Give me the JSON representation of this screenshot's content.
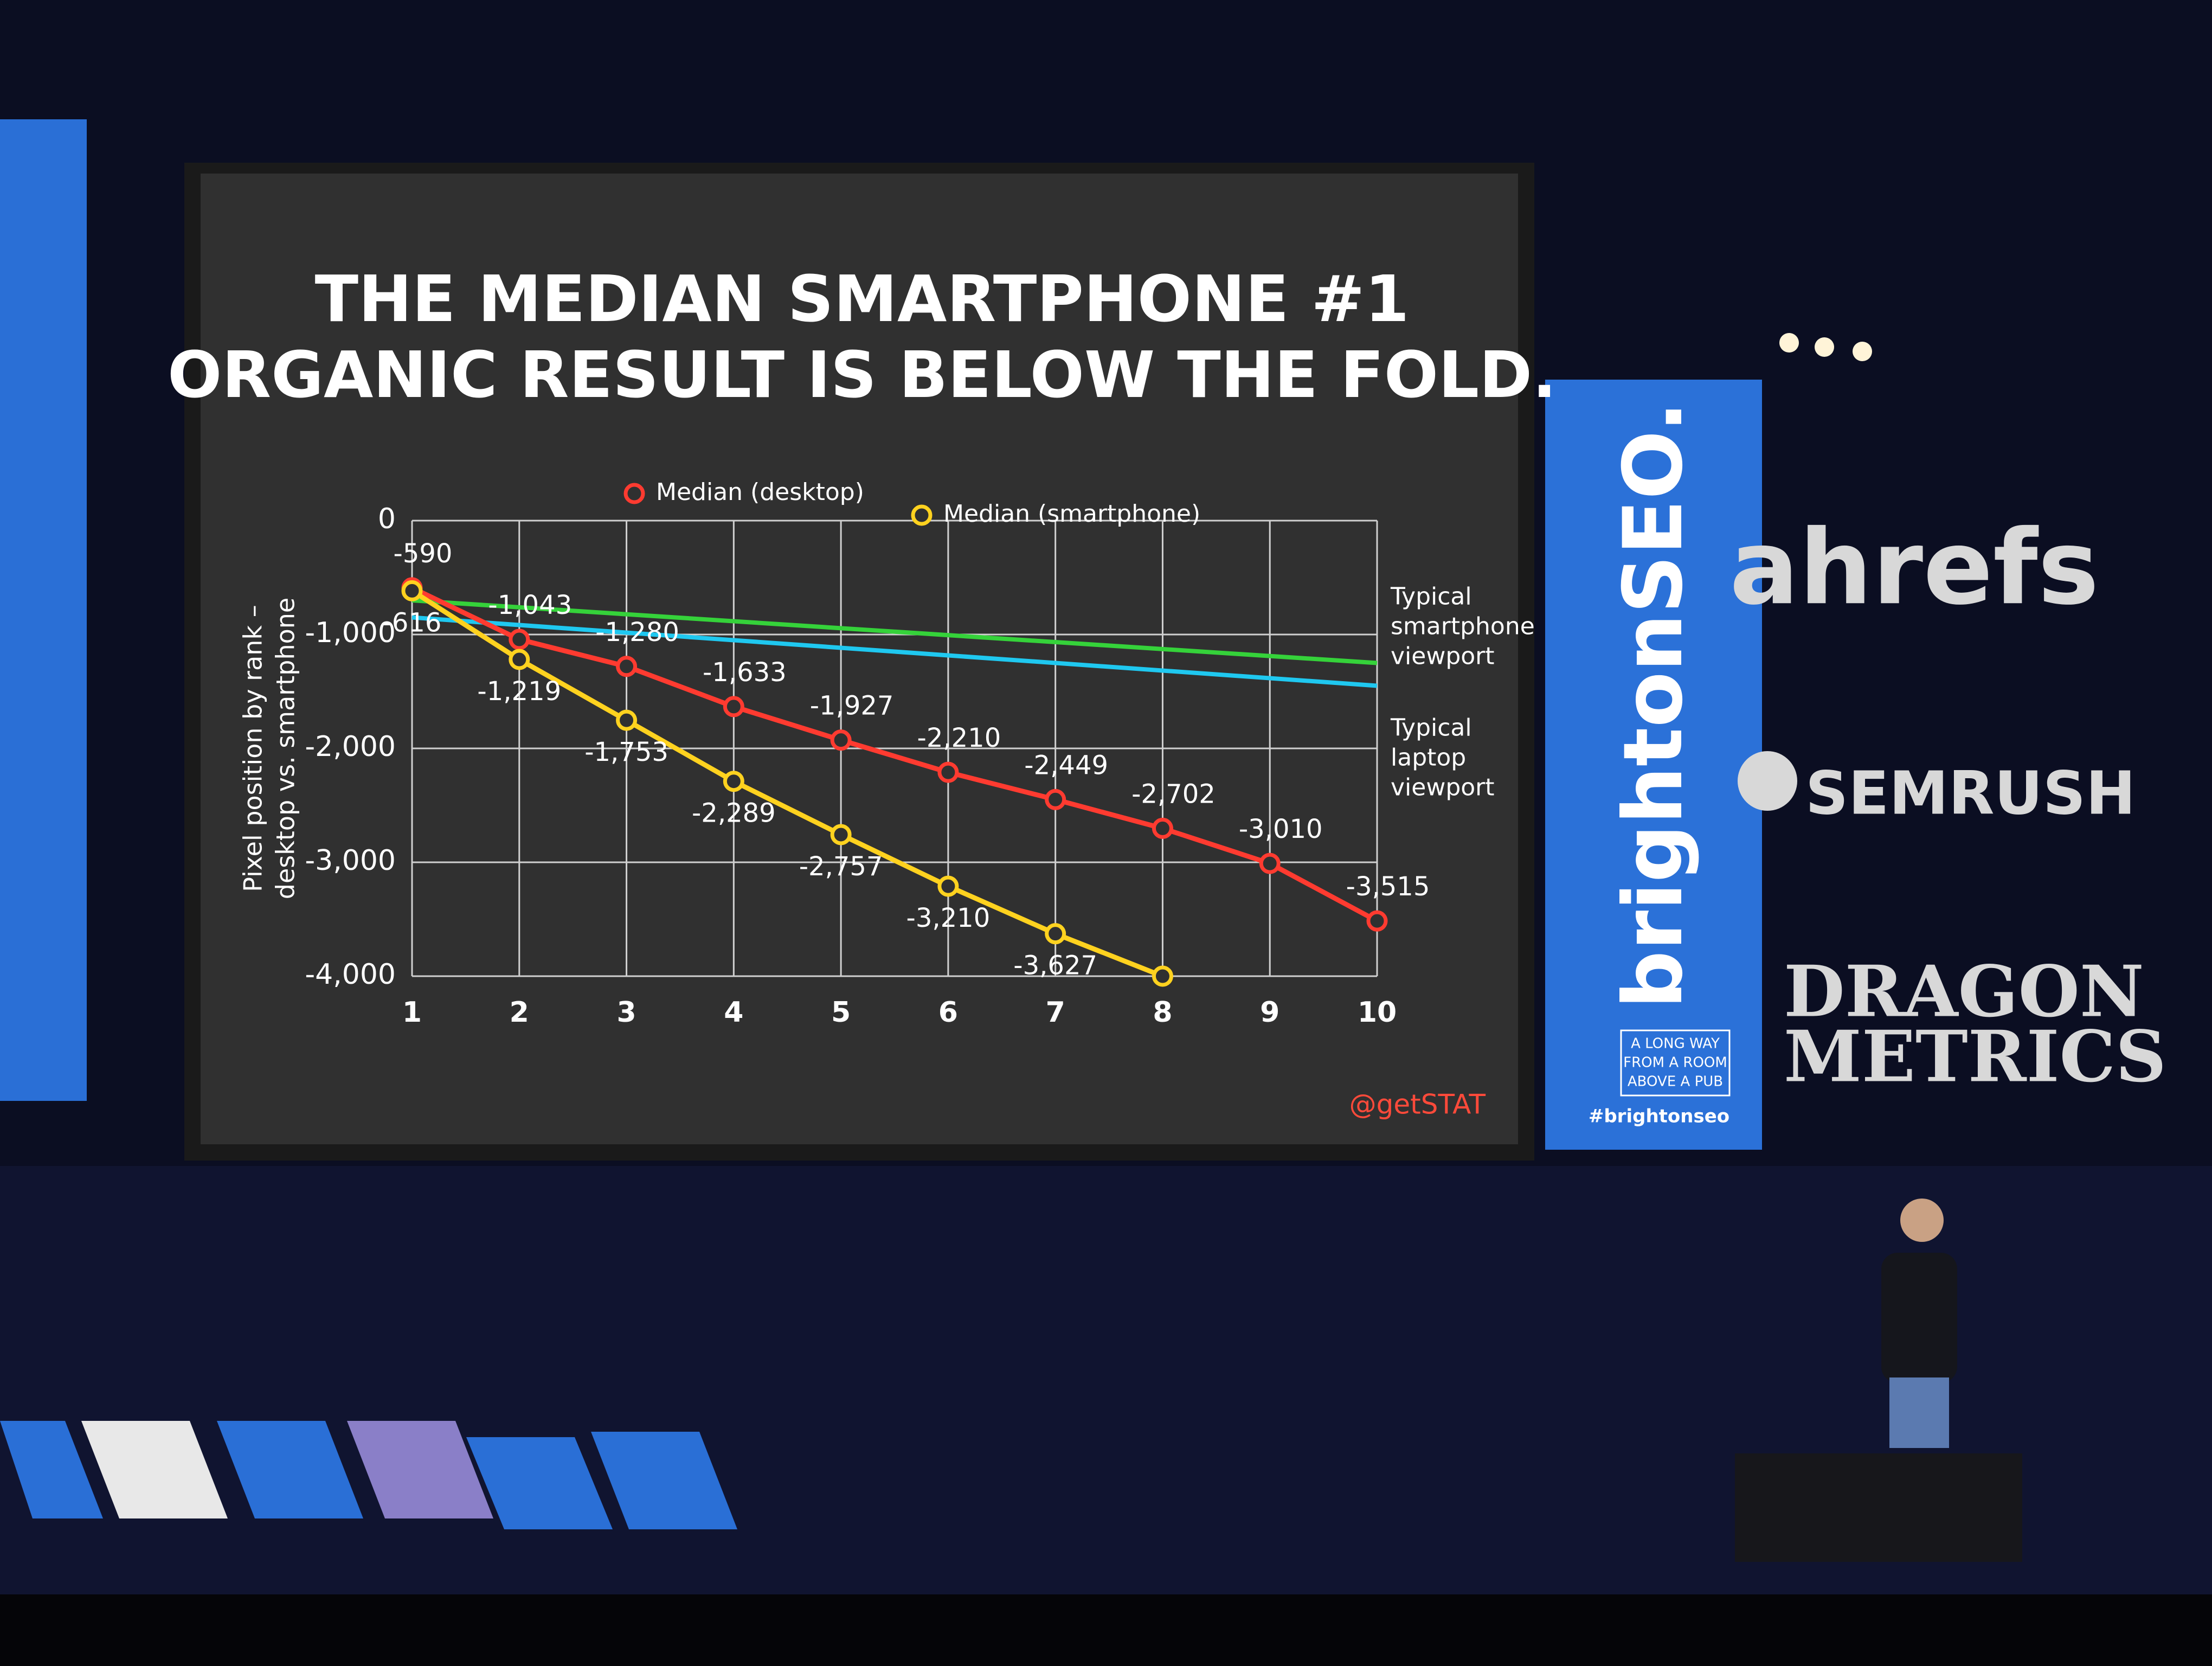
{
  "chart_data": {
    "type": "line",
    "title_lines": [
      "THE MEDIAN SMARTPHONE #1",
      "ORGANIC RESULT IS BELOW THE FOLD."
    ],
    "y_label_lines": [
      "Pixel position by rank –",
      "desktop vs. smartphone"
    ],
    "x": [
      1,
      2,
      3,
      4,
      5,
      6,
      7,
      8,
      9,
      10
    ],
    "xlim": [
      1,
      10
    ],
    "xticks": [
      1,
      2,
      3,
      4,
      5,
      6,
      7,
      8,
      9,
      10
    ],
    "ylim": [
      -4000,
      0
    ],
    "yticks": [
      0,
      {
        "value": -1000,
        "label": "-1,000"
      },
      {
        "value": -2000,
        "label": "-2,000"
      },
      {
        "value": -3000,
        "label": "-3,000"
      },
      {
        "value": -4000,
        "label": "-4,000"
      }
    ],
    "grid": true,
    "series": [
      {
        "name": "Median (desktop)",
        "color": "#ff3b30",
        "values": [
          -590,
          -1043,
          -1280,
          -1633,
          -1927,
          -2210,
          -2449,
          -2702,
          -3010,
          -3515
        ],
        "value_labels": [
          "-590",
          "-1,043",
          "-1,280",
          "-1,633",
          "-1,927",
          "-2,210",
          "-2,449",
          "-2,702",
          "-3,010",
          "-3,515"
        ]
      },
      {
        "name": "Median (smartphone)",
        "color": "#ffd21f",
        "values": [
          -616,
          -1219,
          -1753,
          -2289,
          -2757,
          -3210,
          -3627,
          -4000,
          null,
          null
        ],
        "value_labels": [
          "-616",
          "-1,219",
          "-1,753",
          "-2,289",
          "-2,757",
          "-3,210",
          "-3,627",
          null,
          null,
          null
        ]
      }
    ],
    "reference_lines": [
      {
        "label_lines": [
          "Typical",
          "smartphone",
          "viewport"
        ],
        "color": "#35d23a",
        "values": [
          -700,
          -1250
        ]
      },
      {
        "label_lines": [
          "Typical",
          "laptop",
          "viewport"
        ],
        "color": "#1fc8f0",
        "values": [
          -850,
          -1450
        ]
      }
    ],
    "source": "@getSTAT"
  },
  "scene": {
    "banner_brand": "brightonSEO.",
    "banner_tagline": [
      "A LONG WAY",
      "FROM A ROOM",
      "ABOVE A PUB"
    ],
    "banner_hashtag": "#brightonseo",
    "sponsors": [
      "ahrefs",
      "SEMRUSH",
      "DRAGON",
      "METRICS"
    ]
  }
}
